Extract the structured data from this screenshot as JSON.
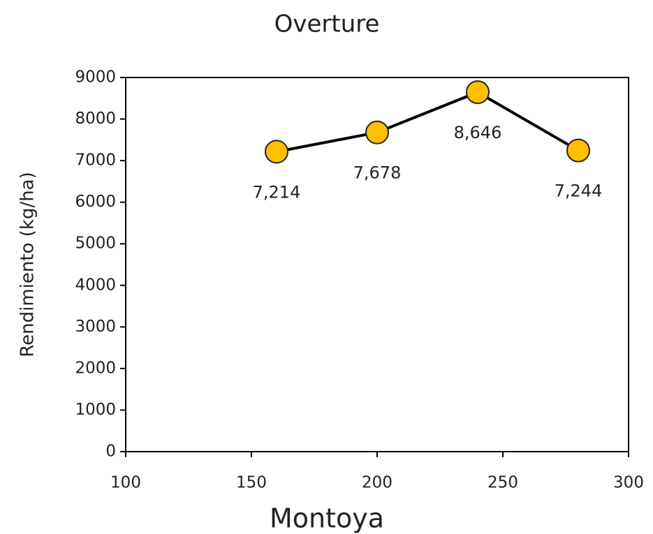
{
  "chart_data": {
    "type": "line",
    "title": "Overture",
    "x_label": "Montoya",
    "y_label": "Rendimiento (kg/ha)",
    "x": [
      160,
      200,
      240,
      280
    ],
    "values": [
      7214,
      7678,
      8646,
      7244
    ],
    "value_labels": [
      "7,214",
      "7,678",
      "8,646",
      "7,244"
    ],
    "color": "#ffc000",
    "line_color": "#000000",
    "xlim": [
      100,
      300
    ],
    "xticks": [
      100,
      150,
      200,
      250,
      300
    ],
    "ylim": [
      0,
      9000
    ],
    "yticks": [
      0,
      1000,
      2000,
      3000,
      4000,
      5000,
      6000,
      7000,
      8000,
      9000
    ],
    "grid": false
  }
}
